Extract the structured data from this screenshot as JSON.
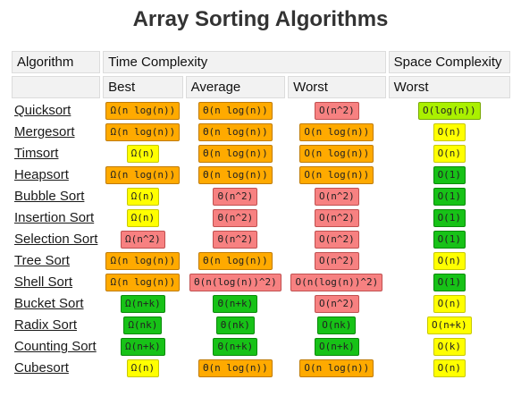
{
  "title": "Array Sorting Algorithms",
  "header": {
    "algorithm": "Algorithm",
    "time_complexity": "Time Complexity",
    "space_complexity": "Space Complexity",
    "best": "Best",
    "average": "Average",
    "worst": "Worst",
    "space_worst": "Worst"
  },
  "colors": {
    "green": "#17c217",
    "light_green": "#aaf000",
    "yellow": "#ffff00",
    "orange": "#ffaa00",
    "red": "#f78181"
  },
  "rows": [
    {
      "name": "Quicksort",
      "best": "Ω(n log(n))",
      "best_c": "o",
      "avg": "Θ(n log(n))",
      "avg_c": "o",
      "worst": "O(n^2)",
      "worst_c": "r",
      "space": "O(log(n))",
      "space_c": "lg"
    },
    {
      "name": "Mergesort",
      "best": "Ω(n log(n))",
      "best_c": "o",
      "avg": "Θ(n log(n))",
      "avg_c": "o",
      "worst": "O(n log(n))",
      "worst_c": "o",
      "space": "O(n)",
      "space_c": "y"
    },
    {
      "name": "Timsort",
      "best": "Ω(n)",
      "best_c": "y",
      "avg": "Θ(n log(n))",
      "avg_c": "o",
      "worst": "O(n log(n))",
      "worst_c": "o",
      "space": "O(n)",
      "space_c": "y"
    },
    {
      "name": "Heapsort",
      "best": "Ω(n log(n))",
      "best_c": "o",
      "avg": "Θ(n log(n))",
      "avg_c": "o",
      "worst": "O(n log(n))",
      "worst_c": "o",
      "space": "O(1)",
      "space_c": "g"
    },
    {
      "name": "Bubble Sort",
      "best": "Ω(n)",
      "best_c": "y",
      "avg": "Θ(n^2)",
      "avg_c": "r",
      "worst": "O(n^2)",
      "worst_c": "r",
      "space": "O(1)",
      "space_c": "g"
    },
    {
      "name": "Insertion Sort",
      "best": "Ω(n)",
      "best_c": "y",
      "avg": "Θ(n^2)",
      "avg_c": "r",
      "worst": "O(n^2)",
      "worst_c": "r",
      "space": "O(1)",
      "space_c": "g"
    },
    {
      "name": "Selection Sort",
      "best": "Ω(n^2)",
      "best_c": "r",
      "avg": "Θ(n^2)",
      "avg_c": "r",
      "worst": "O(n^2)",
      "worst_c": "r",
      "space": "O(1)",
      "space_c": "g"
    },
    {
      "name": "Tree Sort",
      "best": "Ω(n log(n))",
      "best_c": "o",
      "avg": "Θ(n log(n))",
      "avg_c": "o",
      "worst": "O(n^2)",
      "worst_c": "r",
      "space": "O(n)",
      "space_c": "y"
    },
    {
      "name": "Shell Sort",
      "best": "Ω(n log(n))",
      "best_c": "o",
      "avg": "Θ(n(log(n))^2)",
      "avg_c": "r",
      "worst": "O(n(log(n))^2)",
      "worst_c": "r",
      "space": "O(1)",
      "space_c": "g"
    },
    {
      "name": "Bucket Sort",
      "best": "Ω(n+k)",
      "best_c": "g",
      "avg": "Θ(n+k)",
      "avg_c": "g",
      "worst": "O(n^2)",
      "worst_c": "r",
      "space": "O(n)",
      "space_c": "y"
    },
    {
      "name": "Radix Sort",
      "best": "Ω(nk)",
      "best_c": "g",
      "avg": "Θ(nk)",
      "avg_c": "g",
      "worst": "O(nk)",
      "worst_c": "g",
      "space": "O(n+k)",
      "space_c": "y"
    },
    {
      "name": "Counting Sort",
      "best": "Ω(n+k)",
      "best_c": "g",
      "avg": "Θ(n+k)",
      "avg_c": "g",
      "worst": "O(n+k)",
      "worst_c": "g",
      "space": "O(k)",
      "space_c": "y"
    },
    {
      "name": "Cubesort",
      "best": "Ω(n)",
      "best_c": "y",
      "avg": "Θ(n log(n))",
      "avg_c": "o",
      "worst": "O(n log(n))",
      "worst_c": "o",
      "space": "O(n)",
      "space_c": "y"
    }
  ]
}
